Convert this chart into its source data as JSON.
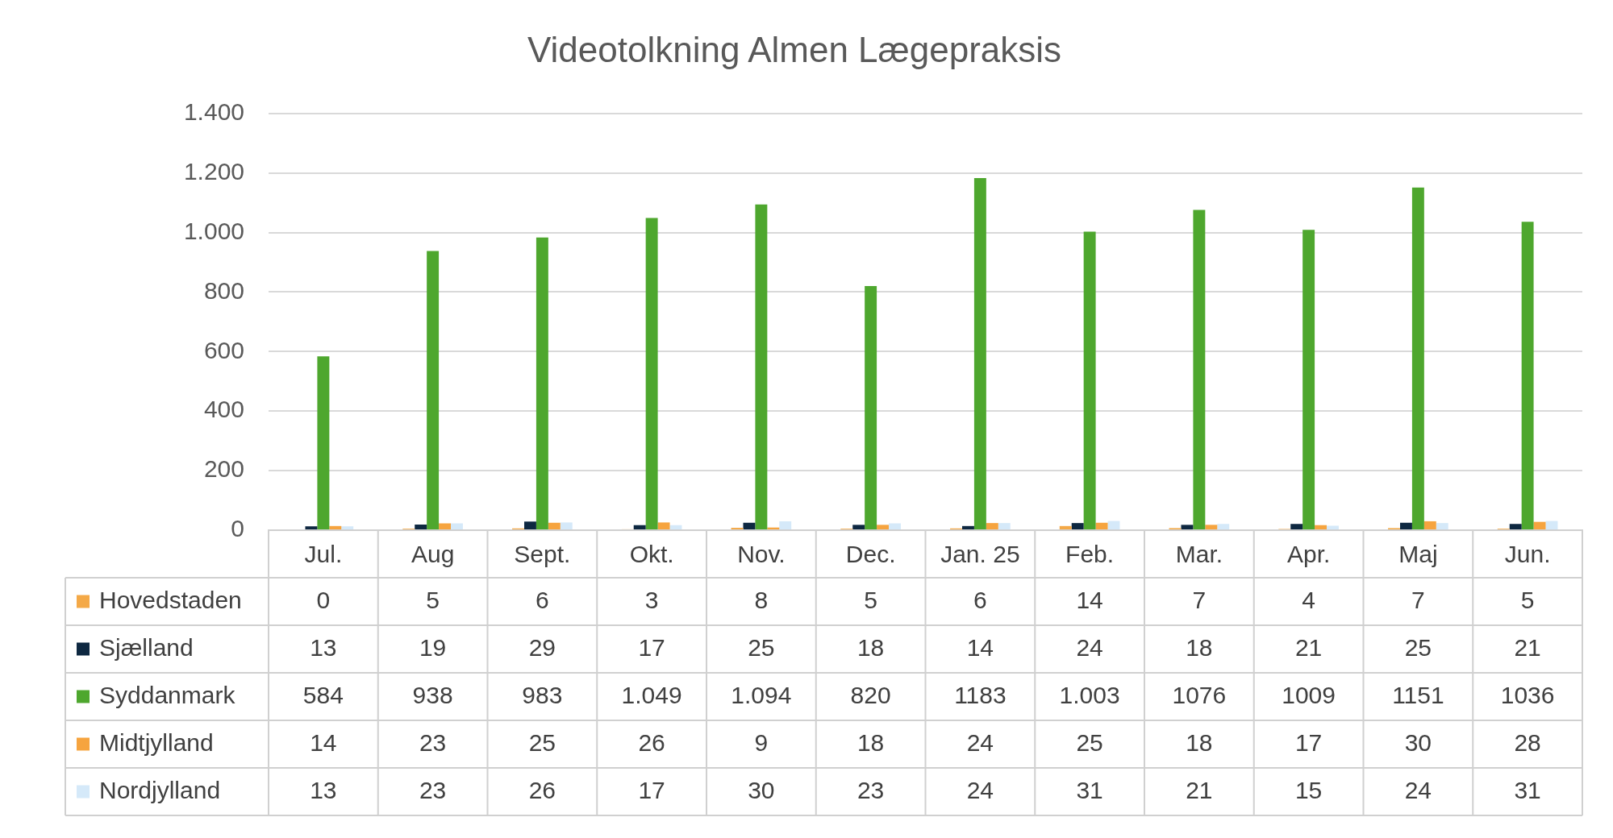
{
  "chart_data": {
    "type": "bar",
    "title": "Videotolkning Almen Lægepraksis",
    "categories": [
      "Jul.",
      "Aug",
      "Sept.",
      "Okt.",
      "Nov.",
      "Dec.",
      "Jan. 25",
      "Feb.",
      "Mar.",
      "Apr.",
      "Maj",
      "Jun."
    ],
    "series": [
      {
        "name": "Hovedstaden",
        "color": "#f4a947",
        "values": [
          0,
          5,
          6,
          3,
          8,
          5,
          6,
          14,
          7,
          4,
          7,
          5
        ],
        "value_labels": [
          "0",
          "5",
          "6",
          "3",
          "8",
          "5",
          "6",
          "14",
          "7",
          "4",
          "7",
          "5"
        ]
      },
      {
        "name": "Sjælland",
        "color": "#0e2841",
        "values": [
          13,
          19,
          29,
          17,
          25,
          18,
          14,
          24,
          18,
          21,
          25,
          21
        ],
        "value_labels": [
          "13",
          "19",
          "29",
          "17",
          "25",
          "18",
          "14",
          "24",
          "18",
          "21",
          "25",
          "21"
        ]
      },
      {
        "name": "Syddanmark",
        "color": "#4ea72e",
        "values": [
          584,
          938,
          983,
          1049,
          1094,
          820,
          1183,
          1003,
          1076,
          1009,
          1151,
          1036
        ],
        "value_labels": [
          "584",
          "938",
          "983",
          "1.049",
          "1.094",
          "820",
          "1183",
          "1.003",
          "1076",
          "1009",
          "1151",
          "1036"
        ]
      },
      {
        "name": "Midtjylland",
        "color": "#f6a43f",
        "values": [
          14,
          23,
          25,
          26,
          9,
          18,
          24,
          25,
          18,
          17,
          30,
          28
        ],
        "value_labels": [
          "14",
          "23",
          "25",
          "26",
          "9",
          "18",
          "24",
          "25",
          "18",
          "17",
          "30",
          "28"
        ]
      },
      {
        "name": "Nordjylland",
        "color": "#d5e9f9",
        "values": [
          13,
          23,
          26,
          17,
          30,
          23,
          24,
          31,
          21,
          15,
          24,
          31
        ],
        "value_labels": [
          "13",
          "23",
          "26",
          "17",
          "30",
          "23",
          "24",
          "31",
          "21",
          "15",
          "24",
          "31"
        ]
      }
    ],
    "ylim": [
      0,
      1400
    ],
    "yticks": [
      {
        "value": 0,
        "label": "0"
      },
      {
        "value": 200,
        "label": "200"
      },
      {
        "value": 400,
        "label": "400"
      },
      {
        "value": 600,
        "label": "600"
      },
      {
        "value": 800,
        "label": "800"
      },
      {
        "value": 1000,
        "label": "1.000"
      },
      {
        "value": 1200,
        "label": "1.200"
      },
      {
        "value": 1400,
        "label": "1.400"
      }
    ],
    "grid": "y",
    "legend": "bottom left"
  }
}
